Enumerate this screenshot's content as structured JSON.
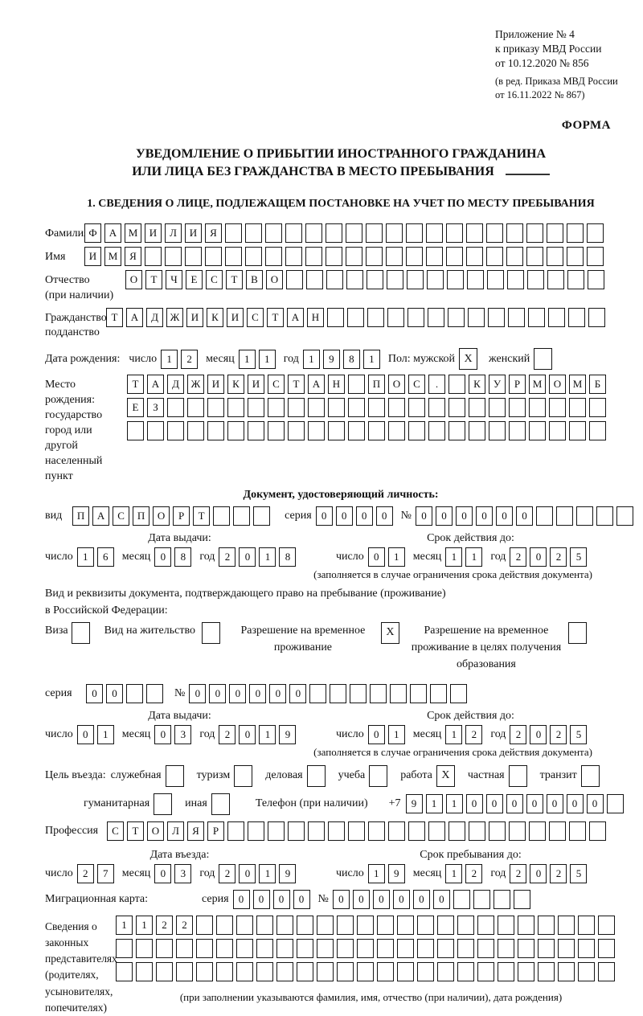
{
  "header": {
    "line1": "Приложение № 4",
    "line2": "к приказу МВД России",
    "line3": "от 10.12.2020 № 856",
    "line4": "(в ред. Приказа МВД России",
    "line5": "от 16.11.2022 № 867)",
    "forma": "ФОРМА"
  },
  "title": {
    "line1": "УВЕДОМЛЕНИЕ О ПРИБЫТИИ ИНОСТРАННОГО ГРАЖДАНИНА",
    "line2": "ИЛИ ЛИЦА БЕЗ ГРАЖДАНСТВА В МЕСТО ПРЕБЫВАНИЯ"
  },
  "section1_heading": "1. СВЕДЕНИЯ О ЛИЦЕ, ПОДЛЕЖАЩЕМ ПОСТАНОВКЕ НА УЧЕТ ПО МЕСТУ ПРЕБЫВАНИЯ",
  "surname": {
    "label": "Фамилия",
    "boxes": {
      "value": "ФАМИЛИЯ",
      "cells": 26
    }
  },
  "firstname": {
    "label": "Имя",
    "boxes": {
      "value": "ИМЯ",
      "cells": 26
    }
  },
  "patronymic": {
    "label": "Отчество",
    "sublabel": "(при наличии)",
    "boxes": {
      "value": "ОТЧЕСТВО",
      "cells": 24
    }
  },
  "citizenship": {
    "label": "Гражданство,",
    "sublabel": "подданство",
    "boxes": {
      "value": "ТАДЖИКИСТАН",
      "cells": 25
    }
  },
  "birth_date": {
    "label": "Дата рождения:",
    "day_label": "число",
    "day": {
      "value": "12",
      "cells": 2
    },
    "month_label": "месяц",
    "month": {
      "value": "11",
      "cells": 2
    },
    "year_label": "год",
    "year": {
      "value": "1981",
      "cells": 4
    },
    "sex_label": "Пол: мужской",
    "male_box": {
      "value": "X",
      "cells": 1
    },
    "female_label": "женский",
    "female_box": {
      "value": "",
      "cells": 1
    }
  },
  "birth_place": {
    "label1": "Место рождения:",
    "label2": "государство",
    "label3": "город или другой",
    "label4": "населенный пункт",
    "row1": {
      "value": "ТАДЖИКИСТАН ПОС. КУРМОМБ",
      "cells": 24
    },
    "row2": {
      "value": "ЕЗ",
      "cells": 24
    },
    "row3": {
      "value": "",
      "cells": 24
    }
  },
  "identity_doc": {
    "heading": "Документ, удостоверяющий личность:",
    "type_label": "вид",
    "type": {
      "value": "ПАСПОРТ",
      "cells": 10
    },
    "series_label": "серия",
    "series": {
      "value": "0000",
      "cells": 4
    },
    "number_label": "№",
    "number": {
      "value": "000000",
      "cells": 11
    },
    "issue_header": "Дата выдачи:",
    "issue_day_label": "число",
    "issue_day": {
      "value": "16",
      "cells": 2
    },
    "issue_month_label": "месяц",
    "issue_month": {
      "value": "08",
      "cells": 2
    },
    "issue_year_label": "год",
    "issue_year": {
      "value": "2018",
      "cells": 4
    },
    "valid_header": "Срок действия до:",
    "valid_day_label": "число",
    "valid_day": {
      "value": "01",
      "cells": 2
    },
    "valid_month_label": "месяц",
    "valid_month": {
      "value": "11",
      "cells": 2
    },
    "valid_year_label": "год",
    "valid_year": {
      "value": "2025",
      "cells": 4
    },
    "note": "(заполняется в случае ограничения срока действия документа)"
  },
  "residence_doc": {
    "intro1": "Вид и реквизиты документа, подтверждающего право на пребывание (проживание)",
    "intro2": "в Российской Федерации:",
    "opt1_label": "Виза",
    "opt1_box": {
      "value": "",
      "cells": 1
    },
    "opt2_label": "Вид на жительство",
    "opt2_box": {
      "value": "",
      "cells": 1
    },
    "opt3_label": "Разрешение на временное проживание",
    "opt3_box": {
      "value": "X",
      "cells": 1
    },
    "opt4_label": "Разрешение на временное проживание в целях получения образования",
    "opt4_box": {
      "value": "",
      "cells": 1
    },
    "series_label": "серия",
    "series": {
      "value": "00",
      "cells": 4
    },
    "number_label": "№",
    "number": {
      "value": "000000",
      "cells": 14
    },
    "issue_header": "Дата выдачи:",
    "issue_day_label": "число",
    "issue_day": {
      "value": "01",
      "cells": 2
    },
    "issue_month_label": "месяц",
    "issue_month": {
      "value": "03",
      "cells": 2
    },
    "issue_year_label": "год",
    "issue_year": {
      "value": "2019",
      "cells": 4
    },
    "valid_header": "Срок действия до:",
    "valid_day_label": "число",
    "valid_day": {
      "value": "01",
      "cells": 2
    },
    "valid_month_label": "месяц",
    "valid_month": {
      "value": "12",
      "cells": 2
    },
    "valid_year_label": "год",
    "valid_year": {
      "value": "2025",
      "cells": 4
    },
    "note": "(заполняется в случае ограничения срока действия документа)"
  },
  "purpose": {
    "label": "Цель въезда:",
    "opt_business_label": "служебная",
    "opt_business": {
      "value": "",
      "cells": 1
    },
    "opt_tourism_label": "туризм",
    "opt_tourism": {
      "value": "",
      "cells": 1
    },
    "opt_commercial_label": "деловая",
    "opt_commercial": {
      "value": "",
      "cells": 1
    },
    "opt_study_label": "учеба",
    "opt_study": {
      "value": "",
      "cells": 1
    },
    "opt_work_label": "работа",
    "opt_work": {
      "value": "X",
      "cells": 1
    },
    "opt_private_label": "частная",
    "opt_private": {
      "value": "",
      "cells": 1
    },
    "opt_transit_label": "транзит",
    "opt_transit": {
      "value": "",
      "cells": 1
    },
    "opt_humanitarian_label": "гуманитарная",
    "opt_humanitarian": {
      "value": "",
      "cells": 1
    },
    "opt_other_label": "иная",
    "opt_other": {
      "value": "",
      "cells": 1
    },
    "phone_label": "Телефон (при наличии)",
    "phone_prefix": "+7",
    "phone": {
      "value": "9110000000",
      "cells": 11
    }
  },
  "profession": {
    "label": "Профессия",
    "boxes": {
      "value": "СТОЛЯР",
      "cells": 25
    }
  },
  "entry_stay": {
    "entry_header": "Дата въезда:",
    "entry_day_label": "число",
    "entry_day": {
      "value": "27",
      "cells": 2
    },
    "entry_month_label": "месяц",
    "entry_month": {
      "value": "03",
      "cells": 2
    },
    "entry_year_label": "год",
    "entry_year": {
      "value": "2019",
      "cells": 4
    },
    "stay_header": "Срок пребывания до:",
    "stay_day_label": "число",
    "stay_day": {
      "value": "19",
      "cells": 2
    },
    "stay_month_label": "месяц",
    "stay_month": {
      "value": "12",
      "cells": 2
    },
    "stay_year_label": "год",
    "stay_year": {
      "value": "2025",
      "cells": 4
    }
  },
  "migration_card": {
    "label": "Миграционная карта:",
    "series_label": "серия",
    "series": {
      "value": "0000",
      "cells": 4
    },
    "number_label": "№",
    "number": {
      "value": "000000",
      "cells": 10
    }
  },
  "representatives": {
    "label1": "Сведения о",
    "label2": "законных",
    "label3": "представителях",
    "label4": "(родителях,",
    "label5": "усыновителях,",
    "label6": "попечителях)",
    "row1": {
      "value": "1122",
      "cells": 25
    },
    "row2": {
      "value": "",
      "cells": 25
    },
    "row3": {
      "value": "",
      "cells": 25
    },
    "note": "(при заполнении указываются фамилия, имя, отчество (при наличии), дата рождения)"
  }
}
